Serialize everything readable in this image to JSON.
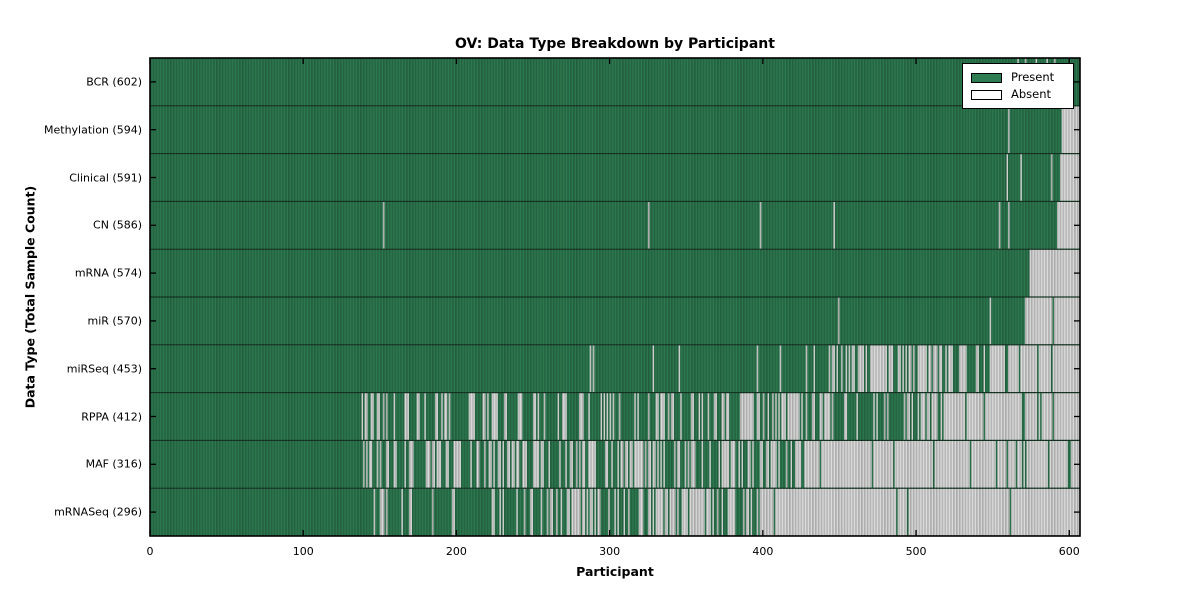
{
  "title": "OV: Data Type Breakdown by Participant",
  "x_axis": {
    "label": "Participant",
    "ticks": [
      0,
      100,
      200,
      300,
      400,
      500,
      600
    ]
  },
  "y_axis": {
    "label": "Data Type (Total Sample Count)"
  },
  "legend": {
    "present_label": "Present",
    "absent_label": "Absent"
  },
  "colors": {
    "present": "#2e7d52",
    "present_edge": "rgba(0,0,0,0.38)",
    "absent": "#e2e2e2",
    "frame": "#000000"
  },
  "chart_data": {
    "type": "heatmap",
    "title": "OV: Data Type Breakdown by Participant",
    "xlabel": "Participant",
    "ylabel": "Data Type (Total Sample Count)",
    "x_range": [
      0,
      607
    ],
    "participants_total": 607,
    "cell_states": [
      "Present",
      "Absent"
    ],
    "seed": 20,
    "rows": [
      {
        "name": "BCR",
        "count": 602,
        "label": "BCR (602)",
        "absent_runs": [
          [
            566,
            567
          ],
          [
            571,
            572
          ],
          [
            578,
            579
          ],
          [
            585,
            586
          ],
          [
            590,
            591
          ]
        ],
        "absent_segments": []
      },
      {
        "name": "Methylation",
        "count": 594,
        "label": "Methylation (594)",
        "absent_runs": [
          [
            560,
            561
          ],
          [
            595,
            607
          ]
        ],
        "absent_segments": []
      },
      {
        "name": "Clinical",
        "count": 591,
        "label": "Clinical (591)",
        "absent_runs": [
          [
            559,
            560
          ],
          [
            568,
            569
          ],
          [
            588,
            589
          ],
          [
            594,
            607
          ]
        ],
        "absent_segments": []
      },
      {
        "name": "CN",
        "count": 586,
        "label": "CN (586)",
        "absent_runs": [
          [
            152,
            153
          ],
          [
            325,
            326
          ],
          [
            398,
            399
          ],
          [
            446,
            447
          ],
          [
            554,
            555
          ],
          [
            560,
            561
          ],
          [
            592,
            607
          ]
        ],
        "absent_segments": []
      },
      {
        "name": "mRNA",
        "count": 574,
        "label": "mRNA (574)",
        "absent_runs": [
          [
            574,
            607
          ]
        ],
        "absent_segments": []
      },
      {
        "name": "miR",
        "count": 570,
        "label": "miR (570)",
        "absent_runs": [
          [
            449,
            450
          ],
          [
            548,
            549
          ],
          [
            571,
            589
          ],
          [
            590,
            607
          ]
        ],
        "absent_segments": []
      },
      {
        "name": "miRSeq",
        "count": 453,
        "label": "miRSeq (453)",
        "absent_runs": [
          [
            287,
            288
          ],
          [
            289,
            290
          ],
          [
            328,
            329
          ],
          [
            345,
            346
          ]
        ],
        "absent_segments": [
          {
            "from": 350,
            "to": 440,
            "frac": 0.06
          },
          {
            "from": 440,
            "to": 535,
            "frac": 0.62
          },
          {
            "from": 535,
            "to": 548,
            "frac": 0.15
          },
          {
            "from": 548,
            "to": 607,
            "frac": 0.93
          }
        ]
      },
      {
        "name": "RPPA",
        "count": 412,
        "label": "RPPA (412)",
        "absent_runs": [],
        "absent_segments": [
          {
            "from": 138,
            "to": 300,
            "frac": 0.28
          },
          {
            "from": 300,
            "to": 360,
            "frac": 0.4
          },
          {
            "from": 360,
            "to": 455,
            "frac": 0.45
          },
          {
            "from": 455,
            "to": 490,
            "frac": 0.25
          },
          {
            "from": 490,
            "to": 520,
            "frac": 0.5
          },
          {
            "from": 520,
            "to": 607,
            "frac": 0.88
          }
        ]
      },
      {
        "name": "MAF",
        "count": 316,
        "label": "MAF (316)",
        "absent_runs": [],
        "absent_segments": [
          {
            "from": 139,
            "to": 360,
            "frac": 0.43
          },
          {
            "from": 360,
            "to": 430,
            "frac": 0.55
          },
          {
            "from": 430,
            "to": 607,
            "frac": 0.94
          }
        ]
      },
      {
        "name": "mRNASeq",
        "count": 296,
        "label": "mRNASeq (296)",
        "absent_runs": [],
        "absent_segments": [
          {
            "from": 143,
            "to": 255,
            "frac": 0.22
          },
          {
            "from": 255,
            "to": 330,
            "frac": 0.45
          },
          {
            "from": 330,
            "to": 410,
            "frac": 0.7
          },
          {
            "from": 410,
            "to": 607,
            "frac": 0.985
          }
        ]
      }
    ]
  }
}
